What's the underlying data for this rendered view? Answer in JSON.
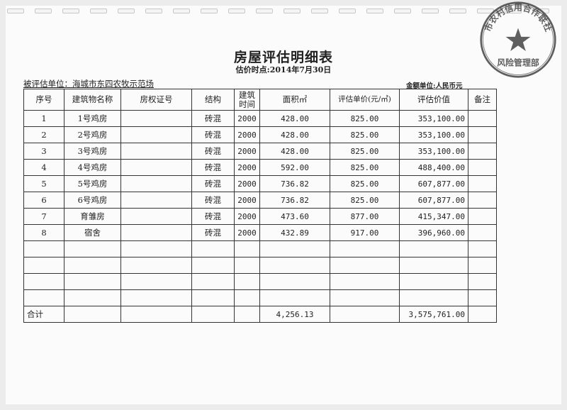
{
  "document": {
    "title": "房屋评估明细表",
    "valuation_date": "估价时点:2014年7月30日",
    "assessed_unit": "被评估单位：海城市东四农牧示范场",
    "currency_unit": "金额单位:人民币元"
  },
  "table": {
    "headers": [
      "序号",
      "建筑物名称",
      "房权证号",
      "结构",
      "建筑时间",
      "面积㎡",
      "评估单价(元/㎡)",
      "评估价值",
      "备注"
    ],
    "rows": [
      [
        "1",
        "1号鸡房",
        "",
        "砖混",
        "2000",
        "428.00",
        "825.00",
        "353,100.00",
        ""
      ],
      [
        "2",
        "2号鸡房",
        "",
        "砖混",
        "2000",
        "428.00",
        "825.00",
        "353,100.00",
        ""
      ],
      [
        "3",
        "3号鸡房",
        "",
        "砖混",
        "2000",
        "428.00",
        "825.00",
        "353,100.00",
        ""
      ],
      [
        "4",
        "4号鸡房",
        "",
        "砖混",
        "2000",
        "592.00",
        "825.00",
        "488,400.00",
        ""
      ],
      [
        "5",
        "5号鸡房",
        "",
        "砖混",
        "2000",
        "736.82",
        "825.00",
        "607,877.00",
        ""
      ],
      [
        "6",
        "6号鸡房",
        "",
        "砖混",
        "2000",
        "736.82",
        "825.00",
        "607,877.00",
        ""
      ],
      [
        "7",
        "育雏房",
        "",
        "砖混",
        "2000",
        "473.60",
        "877.00",
        "415,347.00",
        ""
      ],
      [
        "8",
        "宿舍",
        "",
        "砖混",
        "2000",
        "432.89",
        "917.00",
        "396,960.00",
        ""
      ]
    ],
    "total": {
      "label": "合计",
      "area": "4,256.13",
      "value": "3,575,761.00"
    }
  },
  "stamp": {
    "top_text": "市农村信用合作联社",
    "bottom_text": "风险管理部",
    "ink_color": "#444444"
  }
}
